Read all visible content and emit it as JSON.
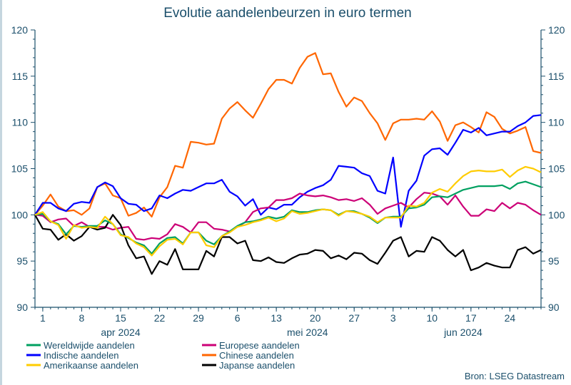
{
  "chart_data": {
    "type": "line",
    "title": "Evolutie aandelenbeurzen in euro termen",
    "source": "Bron: LSEG Datastream",
    "ylim": [
      90,
      120
    ],
    "yticks": [
      "90",
      "95",
      "100",
      "105",
      "110",
      "115",
      "120"
    ],
    "yticks_right": [
      "90",
      "95",
      "100",
      "105",
      "110",
      "115",
      "120"
    ],
    "grid": false,
    "legend_placement": "bottom",
    "x_tick_labels": [
      {
        "date": "2024-04-01",
        "label": "1"
      },
      {
        "date": "2024-04-08",
        "label": "8"
      },
      {
        "date": "2024-04-15",
        "label": "15"
      },
      {
        "date": "2024-04-22",
        "label": "22"
      },
      {
        "date": "2024-04-29",
        "label": "29"
      },
      {
        "date": "2024-05-06",
        "label": "6"
      },
      {
        "date": "2024-05-13",
        "label": "13"
      },
      {
        "date": "2024-05-20",
        "label": "20"
      },
      {
        "date": "2024-05-27",
        "label": "27"
      },
      {
        "date": "2024-06-03",
        "label": "3"
      },
      {
        "date": "2024-06-10",
        "label": "10"
      },
      {
        "date": "2024-06-17",
        "label": "17"
      },
      {
        "date": "2024-06-24",
        "label": "24"
      }
    ],
    "month_labels": [
      {
        "date": "2024-04-15",
        "label": "apr 2024"
      },
      {
        "date": "2024-05-17",
        "label": "mei 2024"
      },
      {
        "date": "2024-06-14",
        "label": "jun 2024"
      }
    ],
    "x": [
      "2024-03-29",
      "2024-04-01",
      "2024-04-02",
      "2024-04-03",
      "2024-04-04",
      "2024-04-05",
      "2024-04-08",
      "2024-04-09",
      "2024-04-10",
      "2024-04-11",
      "2024-04-12",
      "2024-04-15",
      "2024-04-16",
      "2024-04-17",
      "2024-04-18",
      "2024-04-19",
      "2024-04-22",
      "2024-04-23",
      "2024-04-24",
      "2024-04-25",
      "2024-04-26",
      "2024-04-29",
      "2024-04-30",
      "2024-05-01",
      "2024-05-02",
      "2024-05-03",
      "2024-05-06",
      "2024-05-07",
      "2024-05-08",
      "2024-05-09",
      "2024-05-10",
      "2024-05-13",
      "2024-05-14",
      "2024-05-15",
      "2024-05-16",
      "2024-05-17",
      "2024-05-20",
      "2024-05-21",
      "2024-05-22",
      "2024-05-23",
      "2024-05-24",
      "2024-05-27",
      "2024-05-28",
      "2024-05-29",
      "2024-05-30",
      "2024-05-31",
      "2024-06-03",
      "2024-06-04",
      "2024-06-05",
      "2024-06-06",
      "2024-06-07",
      "2024-06-10",
      "2024-06-11",
      "2024-06-12",
      "2024-06-13",
      "2024-06-14",
      "2024-06-17",
      "2024-06-18",
      "2024-06-19",
      "2024-06-20",
      "2024-06-21",
      "2024-06-24",
      "2024-06-25",
      "2024-06-26",
      "2024-06-27",
      "2024-06-28"
    ],
    "series": [
      {
        "name": "Wereldwijde aandelen",
        "color": "#00a060",
        "values": [
          100,
          100.1,
          99.3,
          99.0,
          97.9,
          98.8,
          98.7,
          98.8,
          98.8,
          99.4,
          99.0,
          97.9,
          97.5,
          97.0,
          96.7,
          95.8,
          96.9,
          97.5,
          97.6,
          96.9,
          98.1,
          98.1,
          97.2,
          96.8,
          97.7,
          98.2,
          98.8,
          99.2,
          99.3,
          99.5,
          99.8,
          99.6,
          99.8,
          100.5,
          100.3,
          100.3,
          100.5,
          100.6,
          100.5,
          100.0,
          100.4,
          100.4,
          100.1,
          99.7,
          99.1,
          99.7,
          99.8,
          99.8,
          100.7,
          100.8,
          101.1,
          101.9,
          102.0,
          101.9,
          102.3,
          102.7,
          102.9,
          103.1,
          103.1,
          103.1,
          103.2,
          102.8,
          103.4,
          103.6,
          103.3,
          103.0
        ]
      },
      {
        "name": "Europese aandelen",
        "color": "#cc0077",
        "values": [
          100,
          99.9,
          99.2,
          99.5,
          99.6,
          98.8,
          99.2,
          98.7,
          98.7,
          98.7,
          98.4,
          98.6,
          98.7,
          97.4,
          97.3,
          97.5,
          97.4,
          97.9,
          99.0,
          98.7,
          98.1,
          99.2,
          99.2,
          98.5,
          98.4,
          98.2,
          98.7,
          99.2,
          100.3,
          100.7,
          100.8,
          101.6,
          101.6,
          101.8,
          102.3,
          102.1,
          102.0,
          102.1,
          101.9,
          101.6,
          101.7,
          101.5,
          101.8,
          101.1,
          100.1,
          100.7,
          101.0,
          101.3,
          100.8,
          101.7,
          102.4,
          102.3,
          102.0,
          101.1,
          102.1,
          100.9,
          99.9,
          99.9,
          100.6,
          100.4,
          101.3,
          100.7,
          101.3,
          101.1,
          100.5,
          100.0
        ]
      },
      {
        "name": "Indische aandelen",
        "color": "#0000ff",
        "values": [
          100,
          101.3,
          101.3,
          100.7,
          100.4,
          101.2,
          101.4,
          101.3,
          103.0,
          103.5,
          103.1,
          101.8,
          101.2,
          101.1,
          100.4,
          100.7,
          102.1,
          101.8,
          102.3,
          102.7,
          102.6,
          103.0,
          103.4,
          103.4,
          103.8,
          102.5,
          102.0,
          101.0,
          101.7,
          100.0,
          100.8,
          100.6,
          101.1,
          101.1,
          101.9,
          102.5,
          102.9,
          103.2,
          103.8,
          105.3,
          105.2,
          105.1,
          104.5,
          104.2,
          102.6,
          102.3,
          106.2,
          98.7,
          102.6,
          103.7,
          106.4,
          107.1,
          107.2,
          106.5,
          107.8,
          109.2,
          108.9,
          109.4,
          108.6,
          108.8,
          109.0,
          109.0,
          109.6,
          110.0,
          110.7,
          110.8
        ]
      },
      {
        "name": "Chinese aandelen",
        "color": "#ff6600",
        "values": [
          100,
          101.0,
          102.2,
          100.9,
          100.4,
          100.5,
          100.0,
          100.7,
          103.0,
          103.4,
          102.1,
          101.8,
          99.9,
          100.2,
          100.8,
          99.8,
          101.9,
          103.0,
          105.3,
          105.1,
          107.9,
          107.8,
          107.6,
          107.7,
          110.4,
          111.5,
          112.2,
          111.3,
          110.5,
          112.0,
          113.6,
          114.6,
          114.6,
          114.2,
          115.9,
          117.1,
          117.5,
          115.2,
          115.3,
          113.3,
          111.7,
          112.7,
          112.3,
          111.0,
          109.9,
          108.1,
          109.9,
          110.3,
          110.3,
          110.4,
          110.3,
          111.2,
          110.1,
          108.0,
          109.7,
          110.0,
          109.5,
          108.9,
          111.1,
          110.6,
          109.3,
          108.8,
          109.1,
          109.5,
          106.9,
          106.7
        ]
      },
      {
        "name": "Amerikaanse aandelen",
        "color": "#ffcc00",
        "values": [
          100,
          100.3,
          99.3,
          98.9,
          97.4,
          98.9,
          98.6,
          98.7,
          98.6,
          99.8,
          99.0,
          97.8,
          97.6,
          96.9,
          96.5,
          95.6,
          96.6,
          97.3,
          97.4,
          96.8,
          98.1,
          98.1,
          96.7,
          96.5,
          97.7,
          98.1,
          98.7,
          98.9,
          99.2,
          99.4,
          99.7,
          99.3,
          99.6,
          100.4,
          100.1,
          100.2,
          100.4,
          100.6,
          100.5,
          99.9,
          100.4,
          100.3,
          100.1,
          99.8,
          99.2,
          99.7,
          99.7,
          99.7,
          101.0,
          100.9,
          101.3,
          102.4,
          102.8,
          102.5,
          103.4,
          104.2,
          104.7,
          104.8,
          104.7,
          104.7,
          104.9,
          104.1,
          104.8,
          105.2,
          105.0,
          104.6
        ]
      },
      {
        "name": "Japanse aandelen",
        "color": "#000000",
        "values": [
          100,
          98.5,
          98.4,
          97.3,
          97.9,
          97.2,
          97.7,
          98.7,
          98.4,
          98.6,
          100.0,
          98.9,
          96.7,
          95.3,
          95.5,
          93.6,
          95.0,
          94.6,
          96.3,
          94.1,
          94.1,
          94.1,
          96.1,
          95.5,
          97.6,
          97.6,
          96.9,
          97.2,
          95.1,
          95.0,
          95.4,
          94.9,
          94.8,
          95.3,
          95.7,
          95.8,
          96.2,
          96.1,
          95.3,
          95.6,
          95.2,
          95.9,
          95.8,
          95.1,
          94.7,
          95.9,
          97.2,
          97.6,
          95.5,
          96.1,
          96.0,
          97.6,
          97.2,
          96.2,
          95.5,
          96.2,
          94.0,
          94.3,
          94.8,
          94.5,
          94.3,
          94.3,
          96.2,
          96.5,
          95.8,
          96.2
        ]
      }
    ],
    "legend_order": [
      0,
      1,
      2,
      3,
      4,
      5
    ]
  }
}
